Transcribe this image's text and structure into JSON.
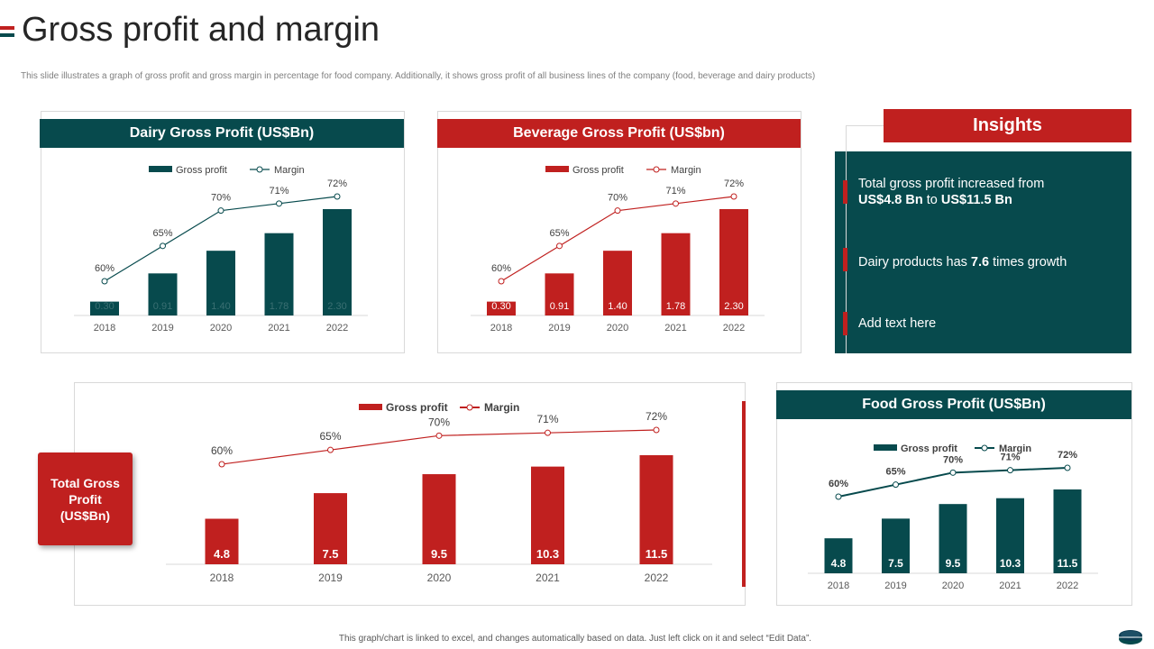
{
  "header": {
    "title": "Gross profit and margin",
    "subtitle": "This slide illustrates a graph of gross profit and gross margin in percentage for food company. Additionally, it shows gross profit of all business lines of the company (food, beverage and dairy products)"
  },
  "colors": {
    "teal": "#074a4d",
    "red": "#c0201f"
  },
  "insights": {
    "title": "Insights",
    "item1_line1": "Total gross profit increased from",
    "item1_from": "US$4.8 Bn",
    "item1_to_word": "to",
    "item1_to": "US$11.5 Bn",
    "item2_prefix": "Dairy products has",
    "item2_value": "7.6",
    "item2_suffix": "times growth",
    "item3": "Add text here"
  },
  "total_label": {
    "line1": "Total Gross",
    "line2": "Profit",
    "line3": "(US$Bn)"
  },
  "footer": "This graph/chart is linked to excel, and changes automatically based on data. Just left click on it and select “Edit Data”.",
  "chart_data": [
    {
      "id": "dairy",
      "type": "bar",
      "title": "Dairy Gross Profit (US$Bn)",
      "categories": [
        "2018",
        "2019",
        "2020",
        "2021",
        "2022"
      ],
      "series": [
        {
          "name": "Gross profit",
          "values": [
            0.3,
            0.91,
            1.4,
            1.78,
            2.3
          ],
          "labels": [
            "0.30",
            "0.91",
            "1.40",
            "1.78",
            "2.30"
          ]
        },
        {
          "name": "Margin",
          "values": [
            60,
            65,
            70,
            71,
            72
          ],
          "labels": [
            "60%",
            "65%",
            "70%",
            "71%",
            "72%"
          ]
        }
      ],
      "ylim": [
        0,
        2.3
      ],
      "margin_range": [
        55,
        73
      ]
    },
    {
      "id": "beverage",
      "type": "bar",
      "title": "Beverage Gross Profit (US$bn)",
      "categories": [
        "2018",
        "2019",
        "2020",
        "2021",
        "2022"
      ],
      "series": [
        {
          "name": "Gross profit",
          "values": [
            0.3,
            0.91,
            1.4,
            1.78,
            2.3
          ],
          "labels": [
            "0.30",
            "0.91",
            "1.40",
            "1.78",
            "2.30"
          ]
        },
        {
          "name": "Margin",
          "values": [
            60,
            65,
            70,
            71,
            72
          ],
          "labels": [
            "60%",
            "65%",
            "70%",
            "71%",
            "72%"
          ]
        }
      ],
      "ylim": [
        0,
        2.3
      ],
      "margin_range": [
        55,
        73
      ]
    },
    {
      "id": "total",
      "type": "bar",
      "title": "",
      "categories": [
        "2018",
        "2019",
        "2020",
        "2021",
        "2022"
      ],
      "series": [
        {
          "name": "Gross profit",
          "values": [
            4.8,
            7.5,
            9.5,
            10.3,
            11.5
          ],
          "labels": [
            "4.8",
            "7.5",
            "9.5",
            "10.3",
            "11.5"
          ]
        },
        {
          "name": "Margin",
          "values": [
            60,
            65,
            70,
            71,
            72
          ],
          "labels": [
            "60%",
            "65%",
            "70%",
            "71%",
            "72%"
          ]
        }
      ],
      "ylim": [
        0,
        11.5
      ],
      "margin_range": [
        20,
        73
      ]
    },
    {
      "id": "food",
      "type": "bar",
      "title": "Food Gross Profit (US$Bn)",
      "categories": [
        "2018",
        "2019",
        "2020",
        "2021",
        "2022"
      ],
      "series": [
        {
          "name": "Gross profit",
          "values": [
            4.8,
            7.5,
            9.5,
            10.3,
            11.5
          ],
          "labels": [
            "4.8",
            "7.5",
            "9.5",
            "10.3",
            "11.5"
          ]
        },
        {
          "name": "Margin",
          "values": [
            60,
            65,
            70,
            71,
            72
          ],
          "labels": [
            "60%",
            "65%",
            "70%",
            "71%",
            "72%"
          ]
        }
      ],
      "ylim": [
        0,
        11.5
      ],
      "margin_range": [
        40,
        73
      ]
    }
  ]
}
